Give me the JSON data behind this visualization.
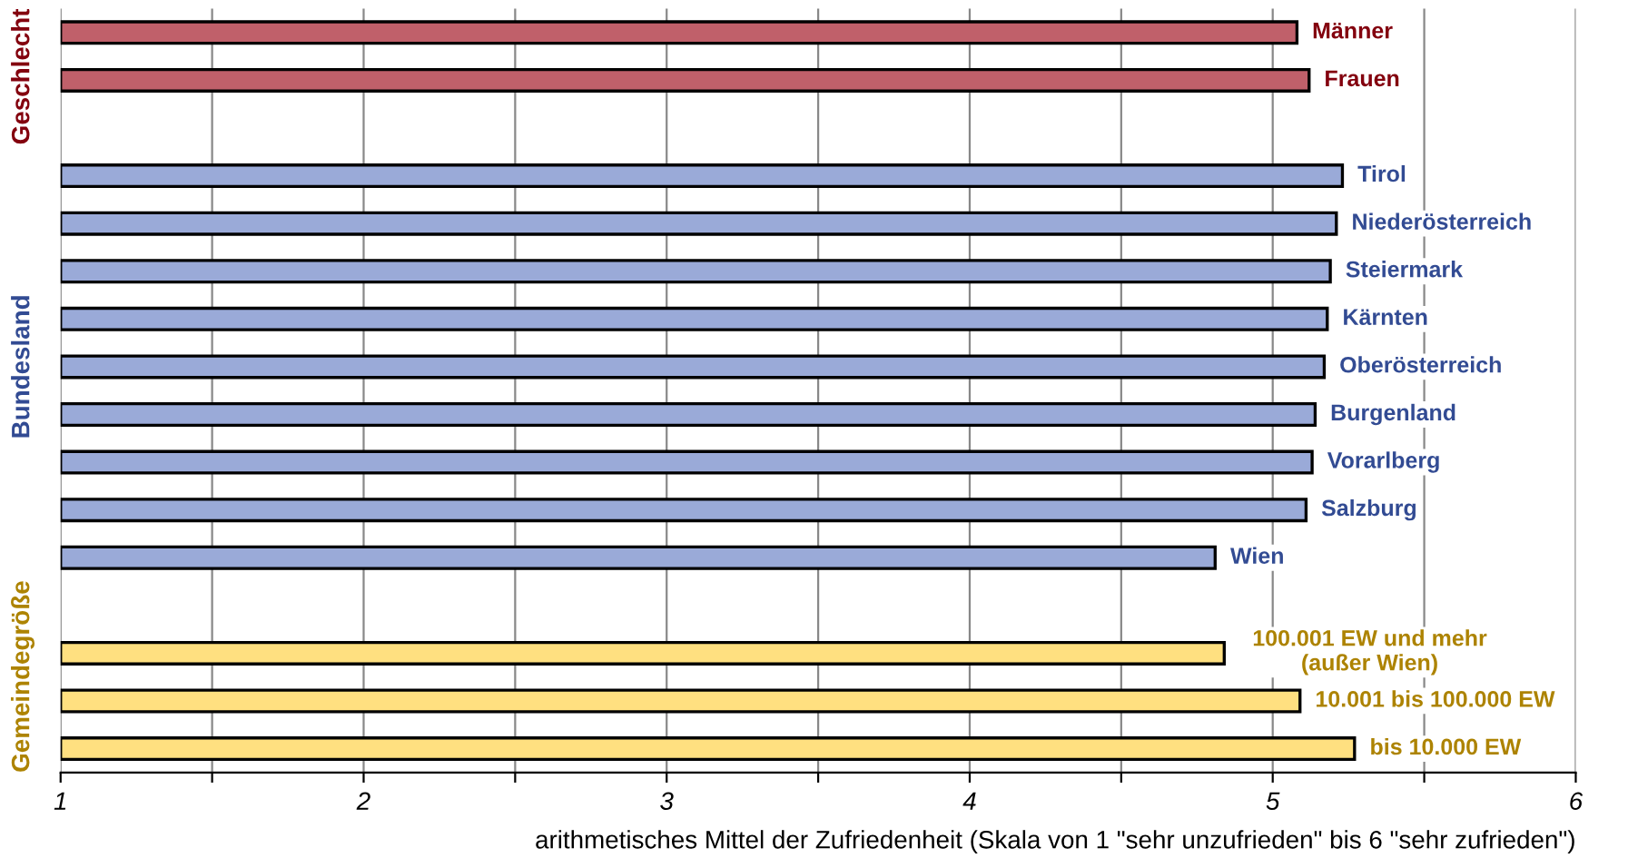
{
  "chart_data": {
    "type": "bar",
    "orientation": "horizontal",
    "xlabel": "arithmetisches Mittel der Zufriedenheit (Skala von 1 \"sehr unzufrieden\" bis 6 \"sehr zufrieden\")",
    "categories": [
      "Männer",
      "Frauen",
      null,
      "Tirol",
      "Niederösterreich",
      "Steiermark",
      "Kärnten",
      "Oberösterreich",
      "Burgenland",
      "Vorarlberg",
      "Salzburg",
      "Wien",
      null,
      "100.001 EW und mehr\n(außer Wien)",
      "10.001 bis 100.000 EW",
      "bis 10.000 EW"
    ],
    "values": [
      5.08,
      5.12,
      null,
      5.23,
      5.21,
      5.19,
      5.18,
      5.17,
      5.14,
      5.13,
      5.11,
      4.81,
      null,
      4.84,
      5.09,
      5.27
    ],
    "colors": [
      "#c0606a",
      "#c0606a",
      null,
      "#9aaad8",
      "#9aaad8",
      "#9aaad8",
      "#9aaad8",
      "#9aaad8",
      "#9aaad8",
      "#9aaad8",
      "#9aaad8",
      "#9aaad8",
      null,
      "#ffe080",
      "#ffe080",
      "#ffe080"
    ],
    "annotations": [
      "Geschlecht",
      "Bundesland",
      "Gemeindegröße"
    ],
    "xlim": [
      1,
      6
    ],
    "xticks": [
      1,
      {
        "value": 1.5,
        "label": null
      },
      2,
      {
        "value": 2.5,
        "label": null
      },
      3,
      {
        "value": 3.5,
        "label": null
      },
      4,
      {
        "value": 4.5,
        "label": null
      },
      5,
      {
        "value": 5.5,
        "label": null
      },
      6
    ],
    "grid": "x",
    "legend": false
  }
}
